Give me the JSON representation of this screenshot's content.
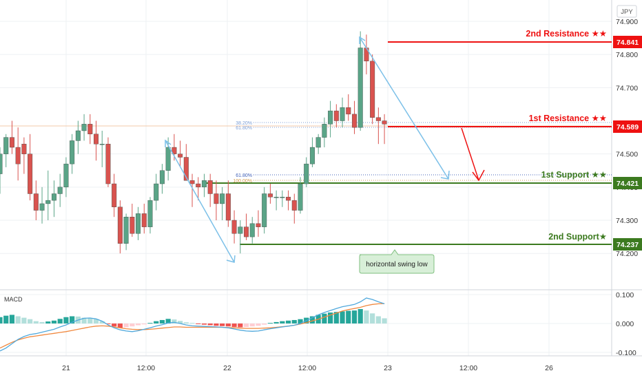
{
  "currency_label": "JPY",
  "annotations": {
    "r2": "2nd Resistance ★★",
    "r1": "1st Resistance ★★",
    "s1": "1st Support ★★",
    "s2": "2nd Support★",
    "callout": "horizontal swing low",
    "fib_382": "38.20%",
    "fib_618_top": "61.80%",
    "fib_618_low": "61.80%",
    "fib_100": "100.00%"
  },
  "colors": {
    "up": "#5aa487",
    "down": "#d9534f",
    "resistance": "#ee1111",
    "support": "#3c7a1f",
    "arrow_blue": "#7cc0e8",
    "fib_blue": "#7c9ed6",
    "macd_line": "#4fa8dc",
    "signal_line": "#f0883e",
    "hist_strong_up": "#26a69a",
    "hist_weak_up": "#b2dfdb",
    "hist_strong_down": "#ef5350",
    "hist_weak_down": "#ffcdd2"
  },
  "chart_data": [
    {
      "type": "candlestick",
      "title": "",
      "y_ticks": [
        "74.900",
        "74.800",
        "74.700",
        "74.500",
        "74.400",
        "74.300",
        "74.200"
      ],
      "x_ticks": [
        "21",
        "12:00",
        "22",
        "12:00",
        "23",
        "12:00",
        "26"
      ],
      "ylim": [
        74.15,
        74.92
      ],
      "price_labels": {
        "r2": "74.841",
        "r1": "74.589",
        "s1": "74.421",
        "s2": "74.237"
      },
      "levels": {
        "r2": 74.841,
        "r1": 74.589,
        "s1": 74.421,
        "s2": 74.237
      },
      "candles": [
        [
          74.44,
          74.52,
          74.38,
          74.5
        ],
        [
          74.5,
          74.56,
          74.46,
          74.55
        ],
        [
          74.55,
          74.6,
          74.5,
          74.52
        ],
        [
          74.52,
          74.58,
          74.42,
          74.47
        ],
        [
          74.53,
          74.55,
          74.44,
          74.5
        ],
        [
          74.5,
          74.56,
          74.36,
          74.38
        ],
        [
          74.38,
          74.42,
          74.3,
          74.33
        ],
        [
          74.33,
          74.4,
          74.29,
          74.35
        ],
        [
          74.35,
          74.45,
          74.3,
          74.36
        ],
        [
          74.36,
          74.42,
          74.31,
          74.38
        ],
        [
          74.38,
          74.44,
          74.34,
          74.4
        ],
        [
          74.4,
          74.49,
          74.37,
          74.47
        ],
        [
          74.47,
          74.56,
          74.44,
          74.54
        ],
        [
          74.54,
          74.6,
          74.5,
          74.57
        ],
        [
          74.57,
          74.62,
          74.54,
          74.59
        ],
        [
          74.59,
          74.62,
          74.53,
          74.56
        ],
        [
          74.56,
          74.6,
          74.48,
          74.53
        ],
        [
          74.53,
          74.57,
          74.46,
          74.53
        ],
        [
          74.53,
          74.55,
          74.4,
          74.41
        ],
        [
          74.41,
          74.44,
          74.31,
          74.34
        ],
        [
          74.34,
          74.36,
          74.2,
          74.23
        ],
        [
          74.23,
          74.32,
          74.21,
          74.31
        ],
        [
          74.31,
          74.35,
          74.25,
          74.26
        ],
        [
          74.26,
          74.34,
          74.24,
          74.32
        ],
        [
          74.32,
          74.35,
          74.26,
          74.28
        ],
        [
          74.28,
          74.37,
          74.26,
          74.36
        ],
        [
          74.36,
          74.44,
          74.33,
          74.41
        ],
        [
          74.41,
          74.47,
          74.38,
          74.45
        ],
        [
          74.45,
          74.55,
          74.42,
          74.52
        ],
        [
          74.52,
          74.56,
          74.48,
          74.5
        ],
        [
          74.5,
          74.54,
          74.46,
          74.49
        ],
        [
          74.49,
          74.53,
          74.42,
          74.42
        ],
        [
          74.42,
          74.44,
          74.34,
          74.41
        ],
        [
          74.41,
          74.43,
          74.36,
          74.4
        ],
        [
          74.4,
          74.44,
          74.37,
          74.42
        ],
        [
          74.42,
          74.44,
          74.34,
          74.38
        ],
        [
          74.38,
          74.42,
          74.3,
          74.35
        ],
        [
          74.35,
          74.4,
          74.3,
          74.38
        ],
        [
          74.38,
          74.42,
          74.28,
          74.3
        ],
        [
          74.3,
          74.33,
          74.23,
          74.26
        ],
        [
          74.26,
          74.3,
          74.2,
          74.28
        ],
        [
          74.28,
          74.32,
          74.24,
          74.25
        ],
        [
          74.25,
          74.31,
          74.23,
          74.29
        ],
        [
          74.29,
          74.33,
          74.25,
          74.28
        ],
        [
          74.28,
          74.4,
          74.26,
          74.38
        ],
        [
          74.38,
          74.41,
          74.35,
          74.37
        ],
        [
          74.37,
          74.39,
          74.33,
          74.37
        ],
        [
          74.37,
          74.39,
          74.34,
          74.37
        ],
        [
          74.37,
          74.39,
          74.33,
          74.36
        ],
        [
          74.36,
          74.38,
          74.29,
          74.33
        ],
        [
          74.33,
          74.43,
          74.32,
          74.41
        ],
        [
          74.41,
          74.49,
          74.4,
          74.47
        ],
        [
          74.47,
          74.55,
          74.46,
          74.52
        ],
        [
          74.52,
          74.56,
          74.5,
          74.55
        ],
        [
          74.55,
          74.61,
          74.52,
          74.59
        ],
        [
          74.59,
          74.66,
          74.55,
          74.63
        ],
        [
          74.63,
          74.65,
          74.58,
          74.6
        ],
        [
          74.6,
          74.67,
          74.58,
          74.64
        ],
        [
          74.64,
          74.68,
          74.6,
          74.62
        ],
        [
          74.62,
          74.66,
          74.56,
          74.58
        ],
        [
          74.58,
          74.87,
          74.57,
          74.82
        ],
        [
          74.82,
          74.86,
          74.74,
          74.78
        ],
        [
          74.78,
          74.8,
          74.59,
          74.61
        ],
        [
          74.61,
          74.64,
          74.53,
          74.6
        ],
        [
          74.6,
          74.62,
          74.53,
          74.59
        ]
      ]
    },
    {
      "type": "macd",
      "title": "MACD",
      "y_ticks": [
        "0.100",
        "0.000",
        "-0.100"
      ],
      "ylim": [
        -0.11,
        0.105
      ],
      "histogram": [
        0.022,
        0.027,
        0.03,
        0.025,
        0.02,
        0.015,
        0.008,
        0.005,
        0.007,
        0.01,
        0.016,
        0.022,
        0.025,
        0.024,
        0.02,
        0.018,
        0.015,
        0.008,
        -0.002,
        -0.01,
        -0.015,
        -0.013,
        -0.01,
        -0.006,
        -0.003,
        0.002,
        0.008,
        0.012,
        0.016,
        0.014,
        0.009,
        0.004,
        0.002,
        -0.002,
        -0.004,
        -0.006,
        -0.008,
        -0.009,
        -0.01,
        -0.012,
        -0.013,
        -0.012,
        -0.01,
        -0.008,
        -0.004,
        0.002,
        0.005,
        0.008,
        0.01,
        0.012,
        0.015,
        0.02,
        0.025,
        0.03,
        0.034,
        0.038,
        0.04,
        0.042,
        0.044,
        0.045,
        0.05,
        0.045,
        0.035,
        0.025,
        0.018
      ],
      "macd": [
        -0.095,
        -0.085,
        -0.07,
        -0.055,
        -0.045,
        -0.038,
        -0.035,
        -0.03,
        -0.025,
        -0.02,
        -0.012,
        -0.005,
        0.004,
        0.012,
        0.018,
        0.019,
        0.016,
        0.008,
        -0.005,
        -0.015,
        -0.022,
        -0.026,
        -0.028,
        -0.025,
        -0.02,
        -0.015,
        -0.009,
        -0.004,
        0.002,
        0.004,
        0.0,
        -0.005,
        -0.008,
        -0.009,
        -0.01,
        -0.011,
        -0.012,
        -0.013,
        -0.015,
        -0.019,
        -0.023,
        -0.026,
        -0.027,
        -0.026,
        -0.022,
        -0.018,
        -0.015,
        -0.012,
        -0.009,
        -0.006,
        0.0,
        0.01,
        0.02,
        0.03,
        0.038,
        0.045,
        0.052,
        0.058,
        0.062,
        0.066,
        0.075,
        0.088,
        0.083,
        0.075,
        0.068
      ],
      "signal": [
        -0.085,
        -0.075,
        -0.065,
        -0.057,
        -0.051,
        -0.046,
        -0.043,
        -0.04,
        -0.037,
        -0.034,
        -0.031,
        -0.028,
        -0.024,
        -0.02,
        -0.016,
        -0.012,
        -0.009,
        -0.008,
        -0.009,
        -0.012,
        -0.015,
        -0.018,
        -0.02,
        -0.021,
        -0.021,
        -0.02,
        -0.018,
        -0.016,
        -0.014,
        -0.012,
        -0.012,
        -0.013,
        -0.013,
        -0.013,
        -0.013,
        -0.013,
        -0.013,
        -0.013,
        -0.014,
        -0.015,
        -0.016,
        -0.017,
        -0.017,
        -0.017,
        -0.016,
        -0.015,
        -0.013,
        -0.011,
        -0.009,
        -0.006,
        -0.002,
        0.003,
        0.009,
        0.015,
        0.022,
        0.029,
        0.036,
        0.043,
        0.048,
        0.052,
        0.056,
        0.062,
        0.066,
        0.068,
        0.069
      ]
    }
  ]
}
